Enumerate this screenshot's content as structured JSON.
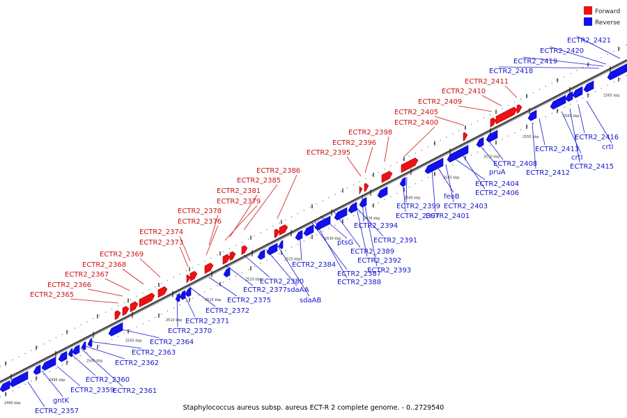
{
  "caption": "Staphylococcus aureus subsp. aureus ECT-R 2 complete genome. - 0..2729540",
  "legend": [
    {
      "label": "Forward",
      "color": "#ee1111"
    },
    {
      "label": "Reverse",
      "color": "#1111ee"
    }
  ],
  "scale_ticks": [
    "2490 kbp",
    "2495 kbp",
    "2500 kbp",
    "2505 kbp",
    "2510 kbp",
    "2515 kbp",
    "2520 kbp",
    "2525 kbp",
    "2530 kbp",
    "2535 kbp",
    "2540 kbp",
    "2545 kbp",
    "2550 kbp",
    "2555 kbp",
    "2560 kbp",
    "2565 kbp"
  ],
  "forward_labels": [
    "ECTR2_2365",
    "ECTR2_2366",
    "ECTR2_2367",
    "ECTR2_2368",
    "ECTR2_2369",
    "ECTR2_2373",
    "ECTR2_2374",
    "ECTR2_2376",
    "ECTR2_2378",
    "ECTR2_2379",
    "ECTR2_2381",
    "ECTR2_2385",
    "ECTR2_2386",
    "ECTR2_2395",
    "ECTR2_2396",
    "ECTR2_2398",
    "ECTR2_2400",
    "ECTR2_2405",
    "ECTR2_2409",
    "ECTR2_2410",
    "ECTR2_2411"
  ],
  "reverse_labels": [
    "ECTR2_2357",
    "gntK",
    "ECTR2_2359",
    "ECTR2_2360",
    "ECTR2_2361",
    "ECTR2_2362",
    "ECTR2_2363",
    "ECTR2_2364",
    "ECTR2_2370",
    "ECTR2_2371",
    "ECTR2_2372",
    "ECTR2_2375",
    "ECTR2_2377",
    "ECTR2_2380",
    "sdaAA",
    "sdaAB",
    "ECTR2_2384",
    "ECTR2_2387",
    "ECTR2_2388",
    "ptsG",
    "ECTR2_2389",
    "ECTR2_2391",
    "ECTR2_2392",
    "ECTR2_2393",
    "ECTR2_2394",
    "ECTR2_2397",
    "ECTR2_2399",
    "ECTR2_2401",
    "feoB",
    "ECTR2_2403",
    "ECTR2_2404",
    "ECTR2_2406",
    "pruA",
    "ECTR2_2408",
    "ECTR2_2412",
    "ECTR2_2413",
    "crtI",
    "ECTR2_2415",
    "ECTR2_2416",
    "crtI",
    "ECTR2_2418",
    "ECTR2_2419",
    "ECTR2_2420",
    "ECTR2_2421"
  ]
}
